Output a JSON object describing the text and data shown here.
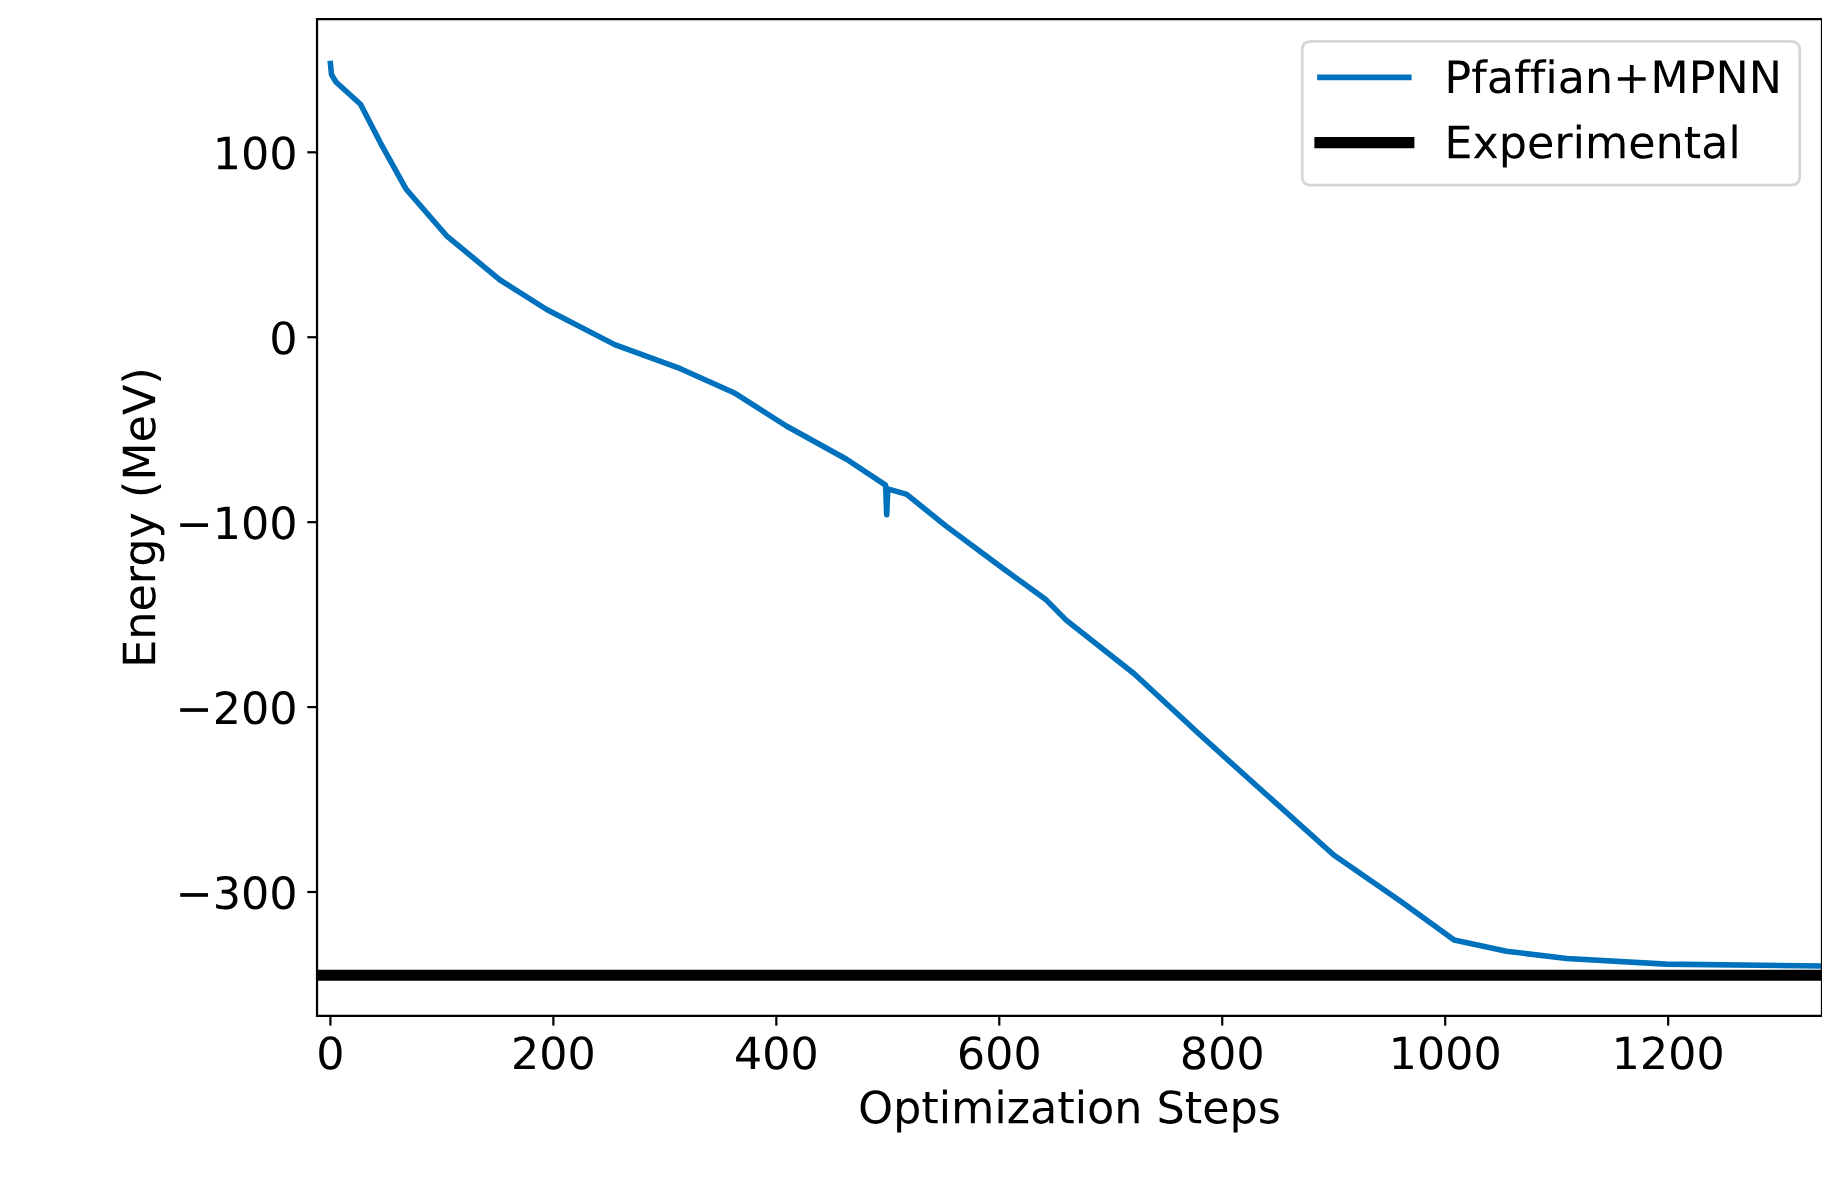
{
  "chart_data": {
    "type": "line",
    "xlabel": "Optimization Steps",
    "ylabel": "Energy (MeV)",
    "x": [
      0,
      1,
      5,
      27,
      45,
      68,
      104,
      152,
      194,
      255,
      314,
      362,
      409,
      463,
      498,
      499,
      500,
      517,
      552,
      601,
      642,
      660,
      721,
      780,
      839,
      900,
      960,
      1008,
      1055,
      1109,
      1198,
      1335
    ],
    "series": [
      {
        "name": "Pfaffian+MPNN",
        "color": "#0072bd",
        "values": [
          148,
          142,
          138,
          126,
          105,
          80,
          55,
          31,
          15,
          -4,
          -17,
          -30,
          -48,
          -66,
          -80,
          -96,
          -82,
          -85,
          -102,
          -124,
          -142,
          -153,
          -182,
          -215,
          -247,
          -280,
          -305,
          -326,
          -332,
          -336,
          -339,
          -340
        ]
      }
    ],
    "ref_lines": [
      {
        "axis": "y",
        "value": -345,
        "label": "Experimental",
        "color": "#000000"
      }
    ],
    "xlim": [
      -12,
      1338
    ],
    "ylim": [
      -367,
      172
    ],
    "xticks": [
      0,
      200,
      400,
      600,
      800,
      1000,
      1200
    ],
    "yticks": [
      -300,
      -200,
      -100,
      0,
      100
    ],
    "grid": false,
    "legend": "top right"
  }
}
